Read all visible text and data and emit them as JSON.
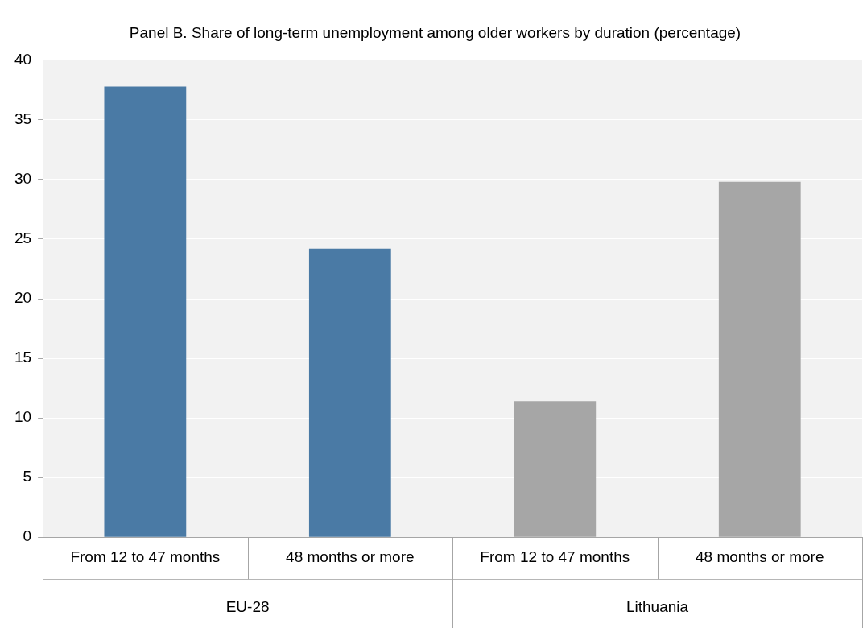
{
  "chart_data": {
    "type": "bar",
    "title": "Panel B. Share of long-term unemployment among older workers by duration (percentage)",
    "categories": [
      "From 12 to 47 months",
      "48 months or more",
      "From 12 to 47 months",
      "48 months or more"
    ],
    "values": [
      37.8,
      24.2,
      11.4,
      29.8
    ],
    "colors": [
      "#4a7aa5",
      "#4a7aa5",
      "#a6a6a6",
      "#a6a6a6"
    ],
    "annotations": [
      "EU-28",
      "Lithuania"
    ],
    "ylim": [
      0,
      40
    ],
    "yticks": [
      0,
      5,
      10,
      15,
      20,
      25,
      30,
      35,
      40
    ],
    "grid": "y",
    "legend": false
  }
}
